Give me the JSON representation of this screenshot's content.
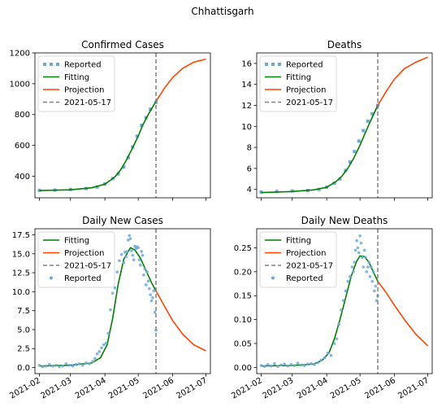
{
  "figure": {
    "title": "Chhattisgarh"
  },
  "chart_data": [
    {
      "type": "line",
      "title": "Confirmed Cases",
      "xlim": [
        "2021-01-28",
        "2021-07-05"
      ],
      "ylim": [
        260,
        1200
      ],
      "yticks": [
        400,
        600,
        800,
        1000,
        1200
      ],
      "vline": "2021-05-17",
      "legend": {
        "position": "top-left",
        "items": [
          {
            "label": "Reported",
            "style": "square-dots",
            "color": "#6fa8d6"
          },
          {
            "label": "Fitting",
            "style": "line",
            "color": "#008000"
          },
          {
            "label": "Projection",
            "style": "line",
            "color": "#ff4500"
          },
          {
            "label": "2021-05-17",
            "style": "dashed",
            "color": "#808080"
          }
        ]
      },
      "series": [
        {
          "name": "Reported",
          "kind": "scatter-square",
          "color": "#6fa8d6",
          "x": [
            "2021-02-01",
            "2021-02-15",
            "2021-03-01",
            "2021-03-15",
            "2021-03-25",
            "2021-04-01",
            "2021-04-08",
            "2021-04-13",
            "2021-04-18",
            "2021-04-22",
            "2021-04-26",
            "2021-04-30",
            "2021-05-04",
            "2021-05-08",
            "2021-05-12",
            "2021-05-17"
          ],
          "y": [
            308,
            310,
            314,
            320,
            330,
            350,
            385,
            415,
            460,
            520,
            590,
            660,
            730,
            780,
            835,
            880
          ]
        },
        {
          "name": "Fitting",
          "kind": "line",
          "color": "#008000",
          "x": [
            "2021-02-01",
            "2021-03-01",
            "2021-03-20",
            "2021-04-01",
            "2021-04-10",
            "2021-04-15",
            "2021-04-20",
            "2021-04-25",
            "2021-05-01",
            "2021-05-05",
            "2021-05-10",
            "2021-05-17"
          ],
          "y": [
            307,
            312,
            325,
            348,
            395,
            440,
            500,
            570,
            660,
            730,
            800,
            885
          ]
        },
        {
          "name": "Projection",
          "kind": "line",
          "color": "#ff4500",
          "x": [
            "2021-05-17",
            "2021-05-25",
            "2021-06-01",
            "2021-06-10",
            "2021-06-20",
            "2021-07-01"
          ],
          "y": [
            885,
            975,
            1040,
            1100,
            1140,
            1160
          ]
        }
      ]
    },
    {
      "type": "line",
      "title": "Deaths",
      "xlim": [
        "2021-01-28",
        "2021-07-05"
      ],
      "ylim": [
        3.2,
        17
      ],
      "yticks": [
        4,
        6,
        8,
        10,
        12,
        14,
        16
      ],
      "vline": "2021-05-17",
      "legend": {
        "position": "top-left",
        "items": [
          {
            "label": "Reported",
            "style": "square-dots",
            "color": "#6fa8d6"
          },
          {
            "label": "Fitting",
            "style": "line",
            "color": "#008000"
          },
          {
            "label": "Projection",
            "style": "line",
            "color": "#ff4500"
          },
          {
            "label": "2021-05-17",
            "style": "dashed",
            "color": "#808080"
          }
        ]
      },
      "series": [
        {
          "name": "Reported",
          "kind": "scatter-square",
          "color": "#6fa8d6",
          "x": [
            "2021-02-01",
            "2021-02-15",
            "2021-03-01",
            "2021-03-15",
            "2021-03-25",
            "2021-04-01",
            "2021-04-08",
            "2021-04-13",
            "2021-04-18",
            "2021-04-22",
            "2021-04-26",
            "2021-04-30",
            "2021-05-04",
            "2021-05-08",
            "2021-05-12",
            "2021-05-17"
          ],
          "y": [
            3.75,
            3.8,
            3.85,
            3.9,
            4.0,
            4.2,
            4.6,
            5.0,
            5.8,
            6.6,
            7.6,
            8.6,
            9.6,
            10.5,
            11.2,
            12.0
          ]
        },
        {
          "name": "Fitting",
          "kind": "line",
          "color": "#008000",
          "x": [
            "2021-02-01",
            "2021-03-01",
            "2021-03-20",
            "2021-04-01",
            "2021-04-10",
            "2021-04-15",
            "2021-04-20",
            "2021-04-25",
            "2021-05-01",
            "2021-05-05",
            "2021-05-10",
            "2021-05-17"
          ],
          "y": [
            3.7,
            3.8,
            3.95,
            4.2,
            4.8,
            5.3,
            6.0,
            6.9,
            8.2,
            9.2,
            10.4,
            12.0
          ]
        },
        {
          "name": "Projection",
          "kind": "line",
          "color": "#ff4500",
          "x": [
            "2021-05-17",
            "2021-05-25",
            "2021-06-01",
            "2021-06-10",
            "2021-06-20",
            "2021-07-01"
          ],
          "y": [
            12.0,
            13.4,
            14.5,
            15.5,
            16.1,
            16.6
          ]
        }
      ]
    },
    {
      "type": "line",
      "title": "Daily New Cases",
      "xlim": [
        "2021-01-28",
        "2021-07-05"
      ],
      "ylim": [
        -0.8,
        18.3
      ],
      "yticks": [
        0.0,
        2.5,
        5.0,
        7.5,
        10.0,
        12.5,
        15.0,
        17.5
      ],
      "ytick_format": 1,
      "vline": "2021-05-17",
      "legend": {
        "position": "top-left",
        "items": [
          {
            "label": "Fitting",
            "style": "line",
            "color": "#008000"
          },
          {
            "label": "Projection",
            "style": "line",
            "color": "#ff4500"
          },
          {
            "label": "2021-05-17",
            "style": "dashed",
            "color": "#808080"
          },
          {
            "label": "Reported",
            "style": "dot",
            "color": "#6fa8d6"
          }
        ]
      },
      "series": [
        {
          "name": "Fitting",
          "kind": "line",
          "color": "#008000",
          "x": [
            "2021-02-01",
            "2021-03-01",
            "2021-03-20",
            "2021-03-28",
            "2021-04-03",
            "2021-04-08",
            "2021-04-13",
            "2021-04-18",
            "2021-04-24",
            "2021-04-28",
            "2021-05-03",
            "2021-05-08",
            "2021-05-13",
            "2021-05-17"
          ],
          "y": [
            0.2,
            0.3,
            0.6,
            1.3,
            3.0,
            6.5,
            11.0,
            14.3,
            15.8,
            15.5,
            14.4,
            12.8,
            11.2,
            10.1
          ]
        },
        {
          "name": "Projection",
          "kind": "line",
          "color": "#ff4500",
          "x": [
            "2021-05-17",
            "2021-05-25",
            "2021-06-01",
            "2021-06-10",
            "2021-06-20",
            "2021-07-01"
          ],
          "y": [
            10.1,
            8.0,
            6.2,
            4.4,
            3.0,
            2.2
          ]
        },
        {
          "name": "Reported",
          "kind": "scatter-dot",
          "color": "#6fa8d6",
          "x": [
            "2021-02-01",
            "2021-02-04",
            "2021-02-07",
            "2021-02-10",
            "2021-02-13",
            "2021-02-16",
            "2021-02-19",
            "2021-02-22",
            "2021-02-25",
            "2021-02-28",
            "2021-03-03",
            "2021-03-06",
            "2021-03-09",
            "2021-03-12",
            "2021-03-15",
            "2021-03-18",
            "2021-03-21",
            "2021-03-23",
            "2021-03-25",
            "2021-03-27",
            "2021-03-29",
            "2021-03-31",
            "2021-04-02",
            "2021-04-04",
            "2021-04-06",
            "2021-04-08",
            "2021-04-10",
            "2021-04-12",
            "2021-04-14",
            "2021-04-16",
            "2021-04-18",
            "2021-04-19",
            "2021-04-20",
            "2021-04-21",
            "2021-04-22",
            "2021-04-23",
            "2021-04-24",
            "2021-04-25",
            "2021-04-26",
            "2021-04-27",
            "2021-04-28",
            "2021-04-29",
            "2021-04-30",
            "2021-05-01",
            "2021-05-02",
            "2021-05-03",
            "2021-05-04",
            "2021-05-05",
            "2021-05-06",
            "2021-05-07",
            "2021-05-08",
            "2021-05-09",
            "2021-05-10",
            "2021-05-11",
            "2021-05-12",
            "2021-05-13",
            "2021-05-14",
            "2021-05-15",
            "2021-05-16",
            "2021-05-17"
          ],
          "y": [
            0.3,
            0.1,
            0.2,
            0.4,
            0.2,
            0.3,
            0.1,
            0.2,
            0.5,
            0.3,
            0.2,
            0.4,
            0.5,
            0.3,
            0.6,
            0.5,
            0.8,
            1.2,
            1.8,
            2.1,
            2.6,
            3.0,
            3.2,
            4.5,
            7.6,
            9.8,
            10.5,
            12.6,
            14.1,
            14.9,
            13.8,
            15.2,
            14.6,
            15.3,
            16.8,
            17.4,
            17.0,
            15.4,
            14.8,
            14.2,
            16.0,
            15.7,
            15.9,
            15.8,
            14.2,
            13.5,
            15.3,
            14.8,
            12.2,
            13.0,
            10.9,
            12.6,
            11.4,
            10.4,
            9.6,
            8.8,
            9.2,
            10.1,
            7.3,
            4.9
          ]
        }
      ]
    },
    {
      "type": "line",
      "title": "Daily New Deaths",
      "xlim": [
        "2021-01-28",
        "2021-07-05"
      ],
      "ylim": [
        -0.013,
        0.29
      ],
      "yticks": [
        0.0,
        0.05,
        0.1,
        0.15,
        0.2,
        0.25
      ],
      "ytick_format": 2,
      "vline": "2021-05-17",
      "legend": {
        "position": "top-left",
        "items": [
          {
            "label": "Fitting",
            "style": "line",
            "color": "#008000"
          },
          {
            "label": "Projection",
            "style": "line",
            "color": "#ff4500"
          },
          {
            "label": "2021-05-17",
            "style": "dashed",
            "color": "#808080"
          },
          {
            "label": "Reported",
            "style": "dot",
            "color": "#6fa8d6"
          }
        ]
      },
      "series": [
        {
          "name": "Fitting",
          "kind": "line",
          "color": "#008000",
          "x": [
            "2021-02-01",
            "2021-03-01",
            "2021-03-20",
            "2021-03-28",
            "2021-04-03",
            "2021-04-08",
            "2021-04-13",
            "2021-04-18",
            "2021-04-23",
            "2021-04-28",
            "2021-05-01",
            "2021-05-05",
            "2021-05-09",
            "2021-05-13",
            "2021-05-17"
          ],
          "y": [
            0.003,
            0.004,
            0.007,
            0.015,
            0.03,
            0.06,
            0.1,
            0.145,
            0.19,
            0.222,
            0.233,
            0.232,
            0.22,
            0.2,
            0.18
          ]
        },
        {
          "name": "Projection",
          "kind": "line",
          "color": "#ff4500",
          "x": [
            "2021-05-17",
            "2021-05-25",
            "2021-06-01",
            "2021-06-10",
            "2021-06-20",
            "2021-07-01"
          ],
          "y": [
            0.18,
            0.155,
            0.13,
            0.1,
            0.07,
            0.045
          ]
        },
        {
          "name": "Reported",
          "kind": "scatter-dot",
          "color": "#6fa8d6",
          "x": [
            "2021-02-01",
            "2021-02-04",
            "2021-02-07",
            "2021-02-10",
            "2021-02-13",
            "2021-02-16",
            "2021-02-19",
            "2021-02-22",
            "2021-02-25",
            "2021-02-28",
            "2021-03-03",
            "2021-03-06",
            "2021-03-09",
            "2021-03-12",
            "2021-03-15",
            "2021-03-18",
            "2021-03-21",
            "2021-03-24",
            "2021-03-27",
            "2021-03-30",
            "2021-04-02",
            "2021-04-05",
            "2021-04-08",
            "2021-04-10",
            "2021-04-12",
            "2021-04-14",
            "2021-04-16",
            "2021-04-18",
            "2021-04-20",
            "2021-04-22",
            "2021-04-24",
            "2021-04-25",
            "2021-04-26",
            "2021-04-27",
            "2021-04-28",
            "2021-04-29",
            "2021-04-30",
            "2021-05-01",
            "2021-05-02",
            "2021-05-03",
            "2021-05-04",
            "2021-05-05",
            "2021-05-06",
            "2021-05-07",
            "2021-05-08",
            "2021-05-09",
            "2021-05-10",
            "2021-05-11",
            "2021-05-12",
            "2021-05-13",
            "2021-05-14",
            "2021-05-15",
            "2021-05-16",
            "2021-05-17"
          ],
          "y": [
            0.004,
            0.002,
            0.006,
            0.003,
            0.008,
            0.002,
            0.005,
            0.007,
            0.003,
            0.006,
            0.004,
            0.009,
            0.005,
            0.004,
            0.007,
            0.008,
            0.006,
            0.01,
            0.015,
            0.02,
            0.03,
            0.025,
            0.05,
            0.06,
            0.09,
            0.12,
            0.14,
            0.16,
            0.18,
            0.19,
            0.21,
            0.2,
            0.22,
            0.245,
            0.265,
            0.25,
            0.24,
            0.275,
            0.26,
            0.23,
            0.21,
            0.245,
            0.23,
            0.2,
            0.21,
            0.22,
            0.19,
            0.21,
            0.18,
            0.2,
            0.16,
            0.17,
            0.14,
            0.15
          ]
        }
      ]
    }
  ],
  "xticks": [
    "2021-02",
    "2021-03",
    "2021-04",
    "2021-05",
    "2021-06",
    "2021-07"
  ]
}
